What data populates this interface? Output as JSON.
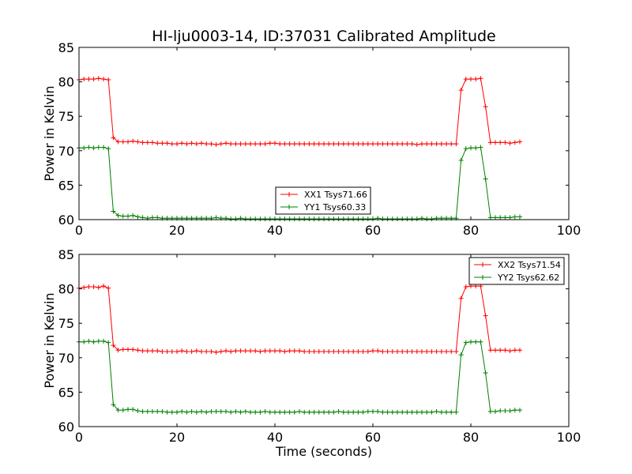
{
  "chart_data": {
    "type": "line",
    "title": "HI-lju0003-14, ID:37031 Calibrated Amplitude",
    "colors": {
      "XX": "#ff0000",
      "YY": "#008000"
    },
    "x": [
      0,
      1,
      2,
      3,
      4,
      5,
      6,
      7,
      8,
      9,
      10,
      11,
      12,
      13,
      14,
      15,
      16,
      17,
      18,
      19,
      20,
      21,
      22,
      23,
      24,
      25,
      26,
      27,
      28,
      29,
      30,
      31,
      32,
      33,
      34,
      35,
      36,
      37,
      38,
      39,
      40,
      41,
      42,
      43,
      44,
      45,
      46,
      47,
      48,
      49,
      50,
      51,
      52,
      53,
      54,
      55,
      56,
      57,
      58,
      59,
      60,
      61,
      62,
      63,
      64,
      65,
      66,
      67,
      68,
      69,
      70,
      71,
      72,
      73,
      74,
      75,
      76,
      77,
      78,
      79,
      80,
      81,
      82,
      83,
      84,
      85,
      86,
      87,
      88,
      89,
      90
    ],
    "panels": [
      {
        "ylabel": "Power in Kelvin",
        "xlabel": "",
        "xlim": [
          0,
          100
        ],
        "ylim": [
          60,
          85
        ],
        "xticks": [
          "0",
          "20",
          "40",
          "60",
          "80",
          "100"
        ],
        "yticks": [
          "60",
          "65",
          "70",
          "75",
          "80",
          "85"
        ],
        "legend_position": "lower-center",
        "series": [
          {
            "name": "XX1 Tsys71.66",
            "color": "#ff0000",
            "values": [
              80.3,
              80.4,
              80.4,
              80.4,
              80.5,
              80.4,
              80.3,
              71.9,
              71.3,
              71.3,
              71.3,
              71.4,
              71.3,
              71.2,
              71.2,
              71.2,
              71.1,
              71.1,
              71.1,
              71.0,
              71.0,
              71.1,
              71.0,
              71.1,
              71.0,
              71.1,
              71.0,
              71.0,
              70.9,
              71.0,
              71.1,
              71.0,
              71.0,
              71.0,
              71.0,
              71.0,
              71.0,
              71.0,
              71.0,
              71.1,
              71.1,
              71.0,
              71.0,
              71.0,
              71.0,
              71.0,
              71.0,
              71.0,
              71.0,
              71.0,
              71.0,
              71.0,
              71.0,
              71.0,
              71.0,
              71.0,
              71.0,
              71.0,
              71.0,
              71.0,
              71.0,
              71.0,
              71.0,
              71.0,
              71.0,
              71.0,
              71.0,
              71.0,
              71.0,
              70.9,
              71.0,
              71.0,
              71.0,
              71.0,
              71.0,
              71.0,
              71.0,
              71.0,
              78.8,
              80.4,
              80.4,
              80.4,
              80.5,
              76.4,
              71.2,
              71.2,
              71.2,
              71.2,
              71.1,
              71.2,
              71.3
            ]
          },
          {
            "name": "YY1 Tsys60.33",
            "color": "#008000",
            "values": [
              70.4,
              70.4,
              70.5,
              70.4,
              70.5,
              70.5,
              70.3,
              61.2,
              60.6,
              60.5,
              60.5,
              60.6,
              60.4,
              60.3,
              60.2,
              60.3,
              60.3,
              60.2,
              60.2,
              60.2,
              60.2,
              60.2,
              60.2,
              60.2,
              60.2,
              60.2,
              60.2,
              60.2,
              60.3,
              60.2,
              60.2,
              60.1,
              60.1,
              60.2,
              60.1,
              60.1,
              60.1,
              60.1,
              60.1,
              60.1,
              60.1,
              60.1,
              60.1,
              60.1,
              60.1,
              60.1,
              60.1,
              60.1,
              60.1,
              60.1,
              60.1,
              60.1,
              60.1,
              60.1,
              60.1,
              60.1,
              60.1,
              60.1,
              60.1,
              60.1,
              60.1,
              60.2,
              60.1,
              60.1,
              60.1,
              60.1,
              60.1,
              60.1,
              60.1,
              60.1,
              60.2,
              60.1,
              60.1,
              60.2,
              60.2,
              60.2,
              60.2,
              60.2,
              68.6,
              70.3,
              70.4,
              70.4,
              70.5,
              65.9,
              60.3,
              60.3,
              60.3,
              60.3,
              60.3,
              60.4,
              60.4
            ]
          }
        ]
      },
      {
        "ylabel": "Power in Kelvin",
        "xlabel": "Time (seconds)",
        "xlim": [
          0,
          100
        ],
        "ylim": [
          60,
          85
        ],
        "xticks": [
          "0",
          "20",
          "40",
          "60",
          "80",
          "100"
        ],
        "yticks": [
          "60",
          "65",
          "70",
          "75",
          "80",
          "85"
        ],
        "legend_position": "upper-right",
        "series": [
          {
            "name": "XX2 Tsys71.54",
            "color": "#ff0000",
            "values": [
              80.1,
              80.2,
              80.3,
              80.3,
              80.2,
              80.4,
              80.1,
              71.8,
              71.1,
              71.2,
              71.2,
              71.2,
              71.1,
              71.0,
              71.0,
              71.0,
              71.0,
              70.9,
              70.9,
              70.9,
              70.9,
              71.0,
              70.9,
              70.9,
              71.0,
              70.9,
              70.9,
              70.9,
              70.8,
              70.9,
              71.0,
              70.9,
              71.0,
              71.0,
              71.0,
              71.0,
              71.0,
              70.9,
              71.0,
              71.0,
              71.0,
              71.0,
              70.9,
              71.0,
              71.0,
              71.0,
              70.9,
              70.9,
              70.9,
              70.9,
              70.9,
              70.9,
              70.9,
              70.9,
              70.9,
              70.9,
              70.9,
              70.9,
              70.9,
              70.9,
              71.0,
              71.0,
              70.9,
              70.9,
              70.9,
              70.9,
              70.9,
              70.9,
              70.9,
              70.9,
              70.9,
              70.9,
              70.9,
              70.9,
              70.9,
              70.9,
              70.9,
              70.9,
              78.6,
              80.3,
              80.4,
              80.4,
              80.4,
              76.1,
              71.1,
              71.1,
              71.1,
              71.1,
              71.0,
              71.1,
              71.1
            ]
          },
          {
            "name": "YY2 Tsys62.62",
            "color": "#008000",
            "values": [
              72.3,
              72.3,
              72.4,
              72.3,
              72.4,
              72.4,
              72.2,
              63.2,
              62.4,
              62.4,
              62.5,
              62.5,
              62.3,
              62.2,
              62.2,
              62.2,
              62.2,
              62.2,
              62.1,
              62.1,
              62.1,
              62.2,
              62.1,
              62.2,
              62.1,
              62.2,
              62.1,
              62.2,
              62.2,
              62.2,
              62.2,
              62.1,
              62.2,
              62.1,
              62.2,
              62.1,
              62.1,
              62.1,
              62.2,
              62.1,
              62.1,
              62.1,
              62.1,
              62.1,
              62.1,
              62.2,
              62.1,
              62.1,
              62.1,
              62.1,
              62.1,
              62.1,
              62.1,
              62.2,
              62.1,
              62.1,
              62.1,
              62.1,
              62.1,
              62.2,
              62.2,
              62.2,
              62.1,
              62.1,
              62.1,
              62.1,
              62.1,
              62.1,
              62.1,
              62.1,
              62.1,
              62.1,
              62.1,
              62.2,
              62.1,
              62.1,
              62.1,
              62.1,
              70.4,
              72.2,
              72.3,
              72.3,
              72.3,
              67.8,
              62.2,
              62.2,
              62.3,
              62.3,
              62.3,
              62.4,
              62.4
            ]
          }
        ]
      }
    ]
  }
}
